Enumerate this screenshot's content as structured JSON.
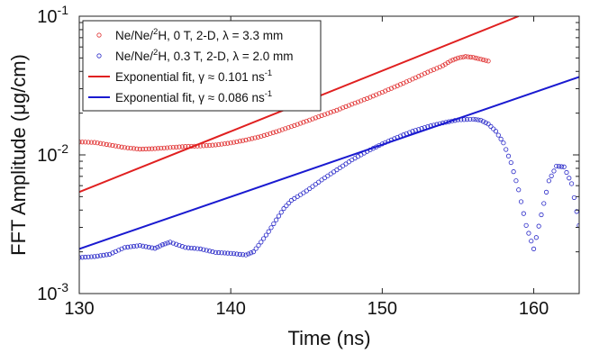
{
  "chart_data": {
    "type": "scatter",
    "xlabel": "Time (ns)",
    "ylabel": "FFT Amplitude (μg/cm)",
    "xlim": [
      130,
      163
    ],
    "ylim": [
      0.001,
      0.1
    ],
    "yscale": "log",
    "grid": false,
    "legend_position": "top-left",
    "x_ticks": [
      130,
      140,
      150,
      160
    ],
    "y_ticks": [
      {
        "value": 0.001,
        "base": "10",
        "exponent": "-3"
      },
      {
        "value": 0.01,
        "base": "10",
        "exponent": "-2"
      },
      {
        "value": 0.1,
        "base": "10",
        "exponent": "-1"
      }
    ],
    "series": [
      {
        "name": "Ne/Ne/²H, 0 T, 2-D, λ = 3.3 mm",
        "legend": {
          "pre": "Ne/Ne/",
          "sup": "2",
          "post": "H, 0 T, 2-D, λ = 3.3 mm"
        },
        "kind": "markers",
        "color": "#e03030",
        "points": [
          [
            130,
            0.0124
          ],
          [
            131,
            0.0123
          ],
          [
            132,
            0.0118
          ],
          [
            133,
            0.0113
          ],
          [
            134,
            0.011
          ],
          [
            135,
            0.0111
          ],
          [
            136,
            0.0113
          ],
          [
            137,
            0.0115
          ],
          [
            138,
            0.0116
          ],
          [
            139,
            0.0118
          ],
          [
            140,
            0.0122
          ],
          [
            141,
            0.0128
          ],
          [
            142,
            0.0136
          ],
          [
            143,
            0.0147
          ],
          [
            144,
            0.016
          ],
          [
            145,
            0.0175
          ],
          [
            146,
            0.0192
          ],
          [
            147,
            0.021
          ],
          [
            148,
            0.0232
          ],
          [
            149,
            0.0255
          ],
          [
            150,
            0.0283
          ],
          [
            151,
            0.0315
          ],
          [
            152,
            0.0352
          ],
          [
            153,
            0.0395
          ],
          [
            154,
            0.044
          ],
          [
            154.5,
            0.0475
          ],
          [
            155,
            0.05
          ],
          [
            155.5,
            0.0512
          ],
          [
            156,
            0.0505
          ],
          [
            156.5,
            0.049
          ],
          [
            157,
            0.0475
          ]
        ]
      },
      {
        "name": "Ne/Ne/²H, 0.3 T, 2-D, λ = 2.0 mm",
        "legend": {
          "pre": "Ne/Ne/",
          "sup": "2",
          "post": "H, 0.3 T, 2-D, λ = 2.0 mm"
        },
        "kind": "markers",
        "color": "#2828c8",
        "points": [
          [
            130,
            0.00182
          ],
          [
            131,
            0.00185
          ],
          [
            132,
            0.00192
          ],
          [
            133,
            0.00215
          ],
          [
            134,
            0.00222
          ],
          [
            135,
            0.00212
          ],
          [
            135.5,
            0.00225
          ],
          [
            136,
            0.00235
          ],
          [
            137,
            0.00215
          ],
          [
            138,
            0.0021
          ],
          [
            139,
            0.00198
          ],
          [
            140,
            0.00195
          ],
          [
            141,
            0.0019
          ],
          [
            141.5,
            0.002
          ],
          [
            142,
            0.00235
          ],
          [
            142.5,
            0.0028
          ],
          [
            143,
            0.0034
          ],
          [
            143.5,
            0.0041
          ],
          [
            144,
            0.0047
          ],
          [
            145,
            0.0055
          ],
          [
            146,
            0.0066
          ],
          [
            147,
            0.0078
          ],
          [
            148,
            0.0092
          ],
          [
            149,
            0.0106
          ],
          [
            150,
            0.012
          ],
          [
            151,
            0.0134
          ],
          [
            152,
            0.0148
          ],
          [
            153,
            0.016
          ],
          [
            154,
            0.017
          ],
          [
            155,
            0.0179
          ],
          [
            156,
            0.0181
          ],
          [
            156.5,
            0.0178
          ],
          [
            157,
            0.0167
          ],
          [
            157.5,
            0.0148
          ],
          [
            158,
            0.0122
          ],
          [
            158.5,
            0.0088
          ],
          [
            159,
            0.0056
          ],
          [
            159.5,
            0.0031
          ],
          [
            160,
            0.0021
          ],
          [
            160.5,
            0.0037
          ],
          [
            161,
            0.0065
          ],
          [
            161.5,
            0.0083
          ],
          [
            162,
            0.0082
          ],
          [
            162.5,
            0.0062
          ],
          [
            163,
            0.0031
          ]
        ]
      },
      {
        "name": "Exponential fit, γ ≈ 0.101 ns⁻¹",
        "legend": {
          "pre": "Exponential fit, γ ≈ 0.101 ns",
          "sup": "-1",
          "post": ""
        },
        "kind": "line",
        "color": "#e02020",
        "points": [
          [
            130,
            0.0054
          ],
          [
            159,
            0.1
          ]
        ]
      },
      {
        "name": "Exponential fit, γ ≈ 0.086 ns⁻¹",
        "legend": {
          "pre": "Exponential fit, γ ≈ 0.086 ns",
          "sup": "-1",
          "post": ""
        },
        "kind": "line",
        "color": "#1a1ad0",
        "points": [
          [
            130,
            0.0021
          ],
          [
            163,
            0.0365
          ]
        ]
      }
    ]
  }
}
